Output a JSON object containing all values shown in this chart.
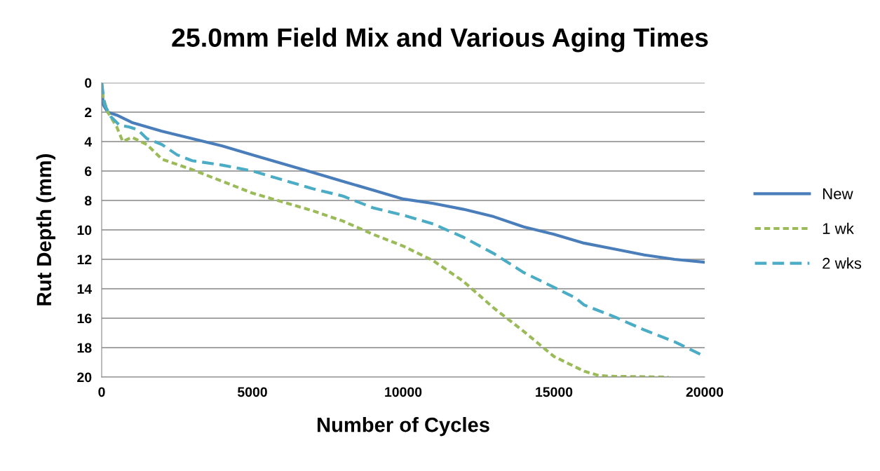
{
  "chart_data": {
    "type": "line",
    "title": "25.0mm Field Mix and Various Aging Times",
    "xlabel": "Number of Cycles",
    "ylabel": "Rut Depth (mm)",
    "xlim": [
      0,
      20000
    ],
    "xticks": [
      0,
      5000,
      10000,
      15000,
      20000
    ],
    "ylim": [
      20,
      0
    ],
    "yticks": [
      0,
      2,
      4,
      6,
      8,
      10,
      12,
      14,
      16,
      18,
      20
    ],
    "grid": "y",
    "legend": "right",
    "marker": "none",
    "series": [
      {
        "name": "New",
        "color": "#4a7ebb",
        "line_style": "solid",
        "x": [
          0,
          50,
          200,
          500,
          1000,
          2000,
          3000,
          4000,
          5000,
          6000,
          7000,
          8000,
          9000,
          10000,
          11000,
          12000,
          13000,
          14000,
          15000,
          16000,
          17000,
          18000,
          19000,
          20000
        ],
        "values": [
          0,
          1.5,
          2,
          2.2,
          2.7,
          3.3,
          3.8,
          4.3,
          4.9,
          5.5,
          6.1,
          6.7,
          7.3,
          7.9,
          8.2,
          8.6,
          9.1,
          9.8,
          10.3,
          10.9,
          11.3,
          11.7,
          12.0,
          12.2
        ]
      },
      {
        "name": "1 wk",
        "color": "#9bbb59",
        "line_style": "dashed",
        "x": [
          0,
          50,
          200,
          500,
          700,
          1000,
          1500,
          2000,
          3000,
          4000,
          5000,
          6000,
          7000,
          8000,
          9000,
          10000,
          11000,
          12000,
          13000,
          14000,
          15000,
          16000,
          16500,
          17000,
          18800
        ],
        "values": [
          0,
          1,
          2,
          3,
          4,
          3.7,
          4.2,
          5.2,
          5.9,
          6.7,
          7.5,
          8.1,
          8.7,
          9.4,
          10.3,
          11.1,
          12.1,
          13.5,
          15.3,
          16.9,
          18.6,
          19.6,
          19.9,
          19.95,
          20
        ]
      },
      {
        "name": "2 wks",
        "color": "#4bacc6",
        "line_style": "dashed",
        "x": [
          0,
          100,
          300,
          600,
          900,
          1200,
          1500,
          2000,
          2500,
          3000,
          4000,
          5000,
          6000,
          7000,
          8000,
          9000,
          10000,
          11000,
          12000,
          13000,
          14000,
          15000,
          15700,
          16000,
          17000,
          18000,
          19000,
          20000
        ],
        "values": [
          0,
          1.5,
          2.3,
          2.9,
          3,
          3.2,
          3.8,
          4.2,
          4.9,
          5.3,
          5.6,
          6.0,
          6.6,
          7.2,
          7.7,
          8.5,
          9.0,
          9.6,
          10.5,
          11.6,
          12.9,
          13.9,
          14.6,
          15.1,
          15.9,
          16.8,
          17.6,
          18.6
        ]
      }
    ]
  }
}
